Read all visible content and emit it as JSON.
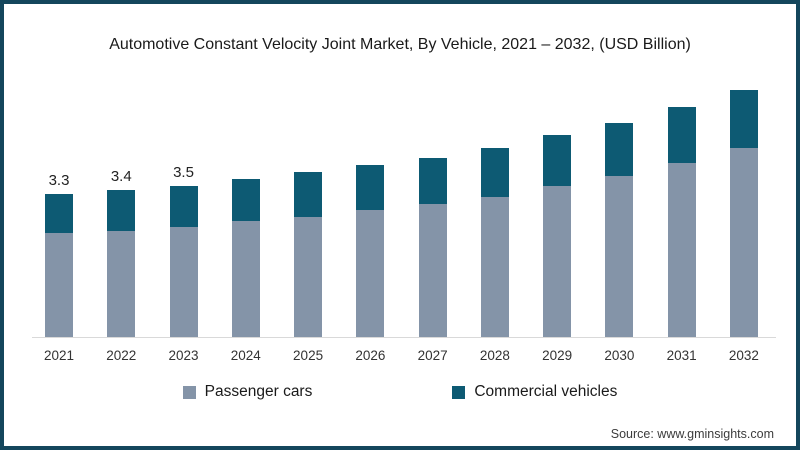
{
  "page": {
    "border_color": "#14465c",
    "background": "#ffffff",
    "axis_line_color": "#d9d9d9"
  },
  "title": "Automotive Constant Velocity Joint Market, By Vehicle, 2021 – 2032, (USD Billion)",
  "source": "Source: www.gminsights.com",
  "legend": {
    "items": [
      {
        "label": "Passenger cars",
        "color": "#8494a8"
      },
      {
        "label": "Commercial vehicles",
        "color": "#0d5a73"
      }
    ],
    "position": "bottom"
  },
  "chart_data": {
    "type": "bar",
    "stacked": true,
    "title": "Automotive Constant Velocity Joint Market, By Vehicle, 2021 – 2032, (USD Billion)",
    "xlabel": "",
    "ylabel": "USD Billion",
    "categories": [
      "2021",
      "2022",
      "2023",
      "2024",
      "2025",
      "2026",
      "2027",
      "2028",
      "2029",
      "2030",
      "2031",
      "2032"
    ],
    "series": [
      {
        "name": "Passenger cars",
        "color": "#8494a8",
        "values": [
          2.4,
          2.45,
          2.55,
          2.68,
          2.77,
          2.93,
          3.07,
          3.23,
          3.48,
          3.72,
          4.02,
          4.36
        ]
      },
      {
        "name": "Commercial vehicles",
        "color": "#0d5a73",
        "values": [
          0.9,
          0.95,
          0.95,
          0.97,
          1.04,
          1.04,
          1.06,
          1.13,
          1.18,
          1.22,
          1.29,
          1.34
        ]
      }
    ],
    "totals": [
      3.3,
      3.4,
      3.5,
      3.65,
      3.81,
      3.97,
      4.13,
      4.36,
      4.66,
      4.94,
      5.31,
      5.7
    ],
    "data_labels": [
      "3.3",
      "3.4",
      "3.5",
      "",
      "",
      "",
      "",
      "",
      "",
      "",
      "",
      ""
    ],
    "ylim": [
      0,
      6
    ],
    "grid": false,
    "legend_position": "bottom"
  }
}
